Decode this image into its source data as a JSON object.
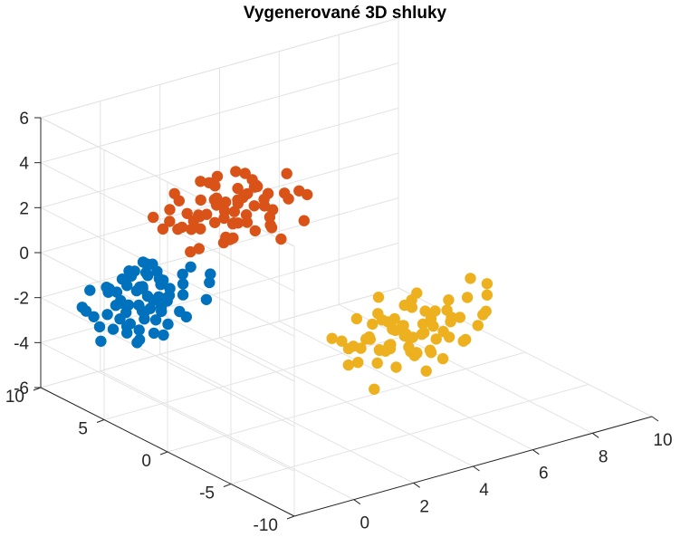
{
  "chart_data": {
    "type": "scatter3d",
    "title": "Vygenerované 3D shluky",
    "xlabel": "",
    "ylabel": "",
    "zlabel": "",
    "xlim": [
      -2,
      10
    ],
    "ylim": [
      -10,
      10
    ],
    "zlim": [
      -6,
      6
    ],
    "x_ticks": [
      0,
      2,
      4,
      6,
      8,
      10
    ],
    "y_ticks": [
      -10,
      -5,
      0,
      5,
      10
    ],
    "z_ticks": [
      -6,
      -4,
      -2,
      0,
      2,
      4,
      6
    ],
    "grid": true,
    "legend": "none",
    "series": [
      {
        "color": "#0072BD",
        "points": [
          [
            0.1,
            6.9,
            -1.4
          ],
          [
            -0.2,
            6.5,
            -2.0
          ],
          [
            0.4,
            7.2,
            -1.1
          ],
          [
            -0.5,
            6.8,
            -2.3
          ],
          [
            0.3,
            6.1,
            -1.7
          ],
          [
            -0.1,
            7.5,
            -0.8
          ],
          [
            0.6,
            6.6,
            -2.6
          ],
          [
            -0.4,
            6.2,
            -1.2
          ],
          [
            0.2,
            7.0,
            -2.9
          ],
          [
            -0.6,
            7.3,
            -1.5
          ],
          [
            0.5,
            5.9,
            -1.9
          ],
          [
            0.0,
            6.4,
            -0.6
          ],
          [
            -0.3,
            7.7,
            -2.1
          ],
          [
            0.7,
            7.0,
            -1.3
          ],
          [
            -0.7,
            6.0,
            -2.5
          ],
          [
            0.2,
            5.7,
            -1.0
          ],
          [
            -0.1,
            6.7,
            -3.2
          ],
          [
            0.4,
            7.6,
            -1.8
          ],
          [
            -0.5,
            7.1,
            -0.9
          ],
          [
            0.1,
            6.3,
            -2.2
          ],
          [
            0.8,
            6.4,
            -1.6
          ],
          [
            -0.8,
            6.9,
            -1.9
          ],
          [
            0.3,
            7.4,
            -2.7
          ],
          [
            -0.2,
            5.8,
            -1.4
          ],
          [
            0.6,
            7.3,
            -0.7
          ],
          [
            -0.6,
            6.5,
            -2.8
          ],
          [
            0.0,
            7.9,
            -1.6
          ],
          [
            0.5,
            6.8,
            -3.0
          ],
          [
            -0.4,
            5.6,
            -2.0
          ],
          [
            0.2,
            6.0,
            -0.5
          ],
          [
            -0.3,
            7.2,
            -3.4
          ],
          [
            0.9,
            6.9,
            -2.2
          ],
          [
            -0.9,
            7.4,
            -1.2
          ],
          [
            0.4,
            5.5,
            -1.5
          ],
          [
            -0.1,
            8.1,
            -2.4
          ],
          [
            0.1,
            6.6,
            -0.3
          ],
          [
            1.2,
            6.3,
            -2.0
          ],
          [
            -1.1,
            6.7,
            -1.0
          ],
          [
            0.7,
            5.4,
            -2.3
          ],
          [
            -0.7,
            7.8,
            -2.6
          ],
          [
            0.3,
            8.0,
            -1.1
          ],
          [
            -0.2,
            5.3,
            -2.9
          ],
          [
            1.0,
            7.5,
            -1.7
          ],
          [
            -1.0,
            6.1,
            -2.2
          ],
          [
            0.5,
            6.2,
            -3.5
          ],
          [
            -0.5,
            8.2,
            -1.8
          ],
          [
            0.8,
            7.7,
            -2.5
          ],
          [
            -0.8,
            5.9,
            -1.6
          ],
          [
            1.4,
            6.8,
            -1.3
          ],
          [
            -1.3,
            7.0,
            -2.7
          ],
          [
            0.2,
            7.1,
            -0.4
          ],
          [
            0.0,
            5.2,
            -1.8
          ],
          [
            1.1,
            5.8,
            -2.8
          ],
          [
            -1.2,
            8.0,
            -1.4
          ],
          [
            0.6,
            8.3,
            -2.0
          ],
          [
            -0.6,
            5.5,
            -3.1
          ],
          [
            1.5,
            6.4,
            -0.9
          ],
          [
            -1.5,
            7.6,
            -2.1
          ],
          [
            0.9,
            5.6,
            -1.2
          ],
          [
            -0.3,
            6.4,
            -3.6
          ],
          [
            2.2,
            6.5,
            -1.5
          ],
          [
            2.3,
            6.8,
            -2.0
          ],
          [
            -1.6,
            6.2,
            -3.0
          ],
          [
            -1.4,
            5.7,
            -2.4
          ],
          [
            0.4,
            8.5,
            -1.5
          ],
          [
            -0.9,
            8.4,
            -2.8
          ],
          [
            1.3,
            8.1,
            -1.9
          ],
          [
            1.6,
            5.4,
            -2.1
          ],
          [
            -1.8,
            7.2,
            -1.7
          ],
          [
            0.1,
            4.9,
            -2.5
          ]
        ]
      },
      {
        "color": "#D95319",
        "points": [
          [
            0.2,
            -0.1,
            3.9
          ],
          [
            -0.3,
            0.3,
            4.5
          ],
          [
            0.5,
            -0.4,
            3.4
          ],
          [
            -0.1,
            0.6,
            4.1
          ],
          [
            0.4,
            0.1,
            4.8
          ],
          [
            -0.5,
            -0.2,
            3.7
          ],
          [
            0.7,
            0.4,
            4.2
          ],
          [
            -0.6,
            0.7,
            3.2
          ],
          [
            0.1,
            -0.6,
            4.6
          ],
          [
            0.3,
            0.9,
            3.6
          ],
          [
            -0.4,
            -0.7,
            4.0
          ],
          [
            0.8,
            -0.1,
            5.1
          ],
          [
            -0.8,
            0.2,
            4.7
          ],
          [
            0.6,
            -0.8,
            3.1
          ],
          [
            0.0,
            1.1,
            4.9
          ],
          [
            -0.2,
            -1.0,
            3.8
          ],
          [
            0.9,
            0.6,
            3.3
          ],
          [
            -0.9,
            -0.5,
            4.3
          ],
          [
            0.2,
            1.3,
            4.1
          ],
          [
            0.4,
            -1.2,
            4.4
          ],
          [
            -0.7,
            1.0,
            3.5
          ],
          [
            1.1,
            0.2,
            4.6
          ],
          [
            -1.0,
            0.8,
            4.0
          ],
          [
            0.5,
            0.5,
            5.4
          ],
          [
            -0.5,
            -0.9,
            3.0
          ],
          [
            1.0,
            -0.6,
            4.0
          ],
          [
            -1.2,
            0.0,
            3.6
          ],
          [
            0.3,
            1.6,
            3.9
          ],
          [
            0.6,
            -1.5,
            4.7
          ],
          [
            -0.3,
            1.4,
            5.0
          ],
          [
            1.3,
            0.9,
            4.3
          ],
          [
            -1.3,
            -0.8,
            4.5
          ],
          [
            0.7,
            1.2,
            2.8
          ],
          [
            -0.6,
            -1.3,
            3.4
          ],
          [
            1.4,
            -0.3,
            3.6
          ],
          [
            0.0,
            -1.6,
            5.2
          ],
          [
            -1.4,
            0.5,
            4.8
          ],
          [
            1.2,
            1.4,
            4.8
          ],
          [
            0.9,
            -1.4,
            3.3
          ],
          [
            -1.1,
            1.3,
            3.2
          ],
          [
            0.4,
            1.9,
            4.4
          ],
          [
            -0.4,
            -1.8,
            4.1
          ],
          [
            1.6,
            0.4,
            3.0
          ],
          [
            -1.6,
            -0.2,
            3.9
          ],
          [
            0.2,
            0.0,
            2.7
          ],
          [
            -0.2,
            0.3,
            5.5
          ],
          [
            1.5,
            -1.0,
            4.5
          ],
          [
            -1.5,
            1.0,
            4.3
          ],
          [
            1.8,
            1.0,
            3.8
          ],
          [
            -1.7,
            -1.1,
            3.1
          ],
          [
            0.8,
            2.0,
            3.5
          ],
          [
            0.6,
            -2.0,
            3.7
          ],
          [
            2.0,
            0.0,
            4.9
          ],
          [
            -1.9,
            0.6,
            3.7
          ],
          [
            1.0,
            -1.9,
            2.9
          ],
          [
            -1.0,
            1.8,
            4.6
          ],
          [
            2.2,
            -0.5,
            4.2
          ],
          [
            -2.1,
            -0.4,
            4.4
          ],
          [
            1.7,
            1.7,
            4.0
          ],
          [
            -0.8,
            -2.1,
            3.6
          ],
          [
            1.3,
            2.2,
            3.2
          ],
          [
            2.4,
            0.8,
            3.4
          ],
          [
            -0.9,
            0.1,
            2.6
          ],
          [
            0.1,
            2.4,
            3.0
          ],
          [
            1.9,
            -1.6,
            3.3
          ],
          [
            -1.8,
            1.6,
            3.9
          ],
          [
            2.6,
            -0.2,
            3.8
          ],
          [
            0.5,
            2.6,
            4.3
          ]
        ]
      },
      {
        "color": "#EDB120",
        "points": [
          [
            6.0,
            -0.1,
            -3.8
          ],
          [
            5.6,
            0.3,
            -4.3
          ],
          [
            6.4,
            -0.4,
            -3.3
          ],
          [
            5.8,
            0.6,
            -3.6
          ],
          [
            6.2,
            0.1,
            -4.6
          ],
          [
            5.4,
            -0.2,
            -3.9
          ],
          [
            6.7,
            0.4,
            -4.1
          ],
          [
            5.5,
            0.7,
            -3.1
          ],
          [
            6.1,
            -0.6,
            -4.4
          ],
          [
            6.3,
            0.9,
            -3.7
          ],
          [
            5.7,
            -0.7,
            -3.4
          ],
          [
            6.8,
            -0.1,
            -4.8
          ],
          [
            5.2,
            0.2,
            -4.2
          ],
          [
            6.5,
            -0.8,
            -3.0
          ],
          [
            5.9,
            1.1,
            -4.5
          ],
          [
            5.8,
            -1.0,
            -3.5
          ],
          [
            6.9,
            0.6,
            -3.2
          ],
          [
            5.1,
            -0.5,
            -4.0
          ],
          [
            6.2,
            1.3,
            -4.0
          ],
          [
            6.3,
            -1.2,
            -4.2
          ],
          [
            5.3,
            1.0,
            -3.3
          ],
          [
            7.1,
            0.2,
            -4.4
          ],
          [
            5.0,
            0.8,
            -3.8
          ],
          [
            6.5,
            0.5,
            -5.0
          ],
          [
            5.5,
            -0.9,
            -2.9
          ],
          [
            7.0,
            -0.6,
            -3.8
          ],
          [
            4.8,
            0.0,
            -3.5
          ],
          [
            6.3,
            1.6,
            -3.6
          ],
          [
            6.6,
            -1.5,
            -4.6
          ],
          [
            5.7,
            1.4,
            -4.7
          ],
          [
            7.3,
            0.9,
            -4.1
          ],
          [
            4.7,
            -0.8,
            -4.3
          ],
          [
            6.7,
            1.2,
            -2.8
          ],
          [
            5.4,
            -1.3,
            -3.2
          ],
          [
            7.4,
            -0.3,
            -3.4
          ],
          [
            6.0,
            -1.6,
            -4.9
          ],
          [
            4.6,
            0.5,
            -4.6
          ],
          [
            7.2,
            1.4,
            -4.5
          ],
          [
            6.9,
            -1.4,
            -3.1
          ],
          [
            4.9,
            1.3,
            -3.0
          ],
          [
            6.4,
            1.9,
            -4.2
          ],
          [
            5.6,
            -1.8,
            -3.9
          ],
          [
            7.6,
            0.4,
            -2.9
          ],
          [
            4.4,
            -0.2,
            -3.7
          ],
          [
            6.2,
            0.0,
            -2.6
          ],
          [
            5.8,
            0.3,
            -5.2
          ],
          [
            7.5,
            -1.0,
            -4.3
          ],
          [
            4.5,
            1.0,
            -4.1
          ],
          [
            7.8,
            1.0,
            -3.6
          ],
          [
            4.3,
            -1.1,
            -2.9
          ],
          [
            6.8,
            2.0,
            -3.3
          ],
          [
            6.6,
            -2.0,
            -3.5
          ],
          [
            8.0,
            0.0,
            -4.7
          ],
          [
            4.1,
            0.6,
            -3.5
          ],
          [
            7.0,
            -1.9,
            -2.8
          ],
          [
            5.0,
            1.8,
            -4.4
          ],
          [
            8.2,
            -0.5,
            -4.0
          ],
          [
            3.9,
            -0.4,
            -4.2
          ],
          [
            7.7,
            1.7,
            -3.8
          ],
          [
            5.2,
            -2.1,
            -3.4
          ],
          [
            7.3,
            2.2,
            -3.0
          ],
          [
            8.4,
            0.8,
            -3.2
          ],
          [
            5.1,
            0.1,
            -2.5
          ],
          [
            6.1,
            2.4,
            -2.8
          ],
          [
            7.9,
            -1.6,
            -3.1
          ],
          [
            4.2,
            1.6,
            -3.7
          ],
          [
            8.6,
            -0.2,
            -3.6
          ],
          [
            6.5,
            2.6,
            -4.1
          ],
          [
            9.7,
            2.3,
            -3.5
          ],
          [
            9.7,
            2.3,
            -4.0
          ],
          [
            4.0,
            -2.2,
            -4.8
          ],
          [
            8.8,
            1.5,
            -2.7
          ]
        ]
      }
    ]
  }
}
